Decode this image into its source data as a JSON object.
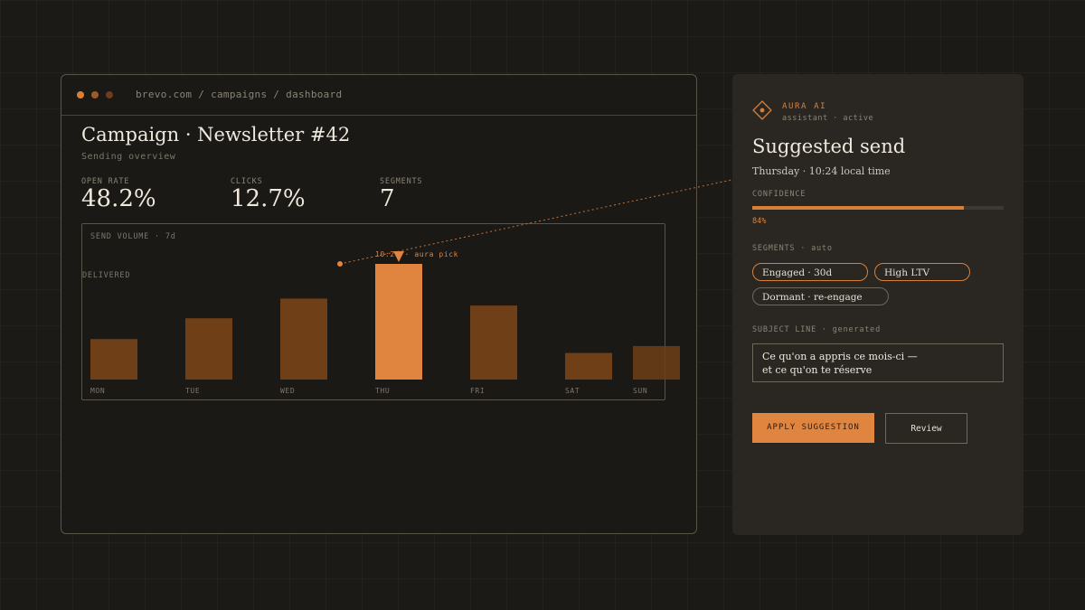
{
  "browser": {
    "url": "brevo.com / campaigns / dashboard",
    "dot_colors": [
      "#d98038",
      "#a0592a",
      "#6b3e1f"
    ]
  },
  "dashboard": {
    "title": "Campaign · Newsletter #42",
    "subtitle": "Sending overview",
    "metrics": [
      {
        "label": "OPEN RATE",
        "value": "48.2%"
      },
      {
        "label": "CLICKS",
        "value": "12.7%"
      },
      {
        "label": "SEGMENTS",
        "value": "7"
      }
    ]
  },
  "chart_data": {
    "type": "bar",
    "title": "SEND VOLUME · 7d",
    "legend": "DELIVERED",
    "categories": [
      "MON",
      "TUE",
      "WED",
      "THU",
      "FRI",
      "SAT",
      "SUN"
    ],
    "values": [
      35,
      53,
      70,
      100,
      64,
      23,
      29
    ],
    "highlight_index": 3,
    "annotation": "10:24 · aura pick",
    "colors": {
      "bar": "#6f3f18",
      "highlight": "#e08540"
    }
  },
  "assistant": {
    "name": "AURA AI",
    "status": "assistant · active",
    "title": "Suggested send",
    "subtitle": "Thursday · 10:24 local time",
    "confidence_label": "CONFIDENCE",
    "confidence_value": 84,
    "confidence_text": "84%",
    "segments_label": "SEGMENTS · auto",
    "segments": [
      "Engaged · 30d",
      "High LTV",
      "Dormant · re-engage"
    ],
    "subject_label": "SUBJECT LINE · generated",
    "subject_line1": "Ce qu'on a appris ce mois-ci —",
    "subject_line2": "et ce qu'on te réserve",
    "apply_label": "APPLY SUGGESTION",
    "review_label": "Review",
    "accent": "#d98038"
  }
}
